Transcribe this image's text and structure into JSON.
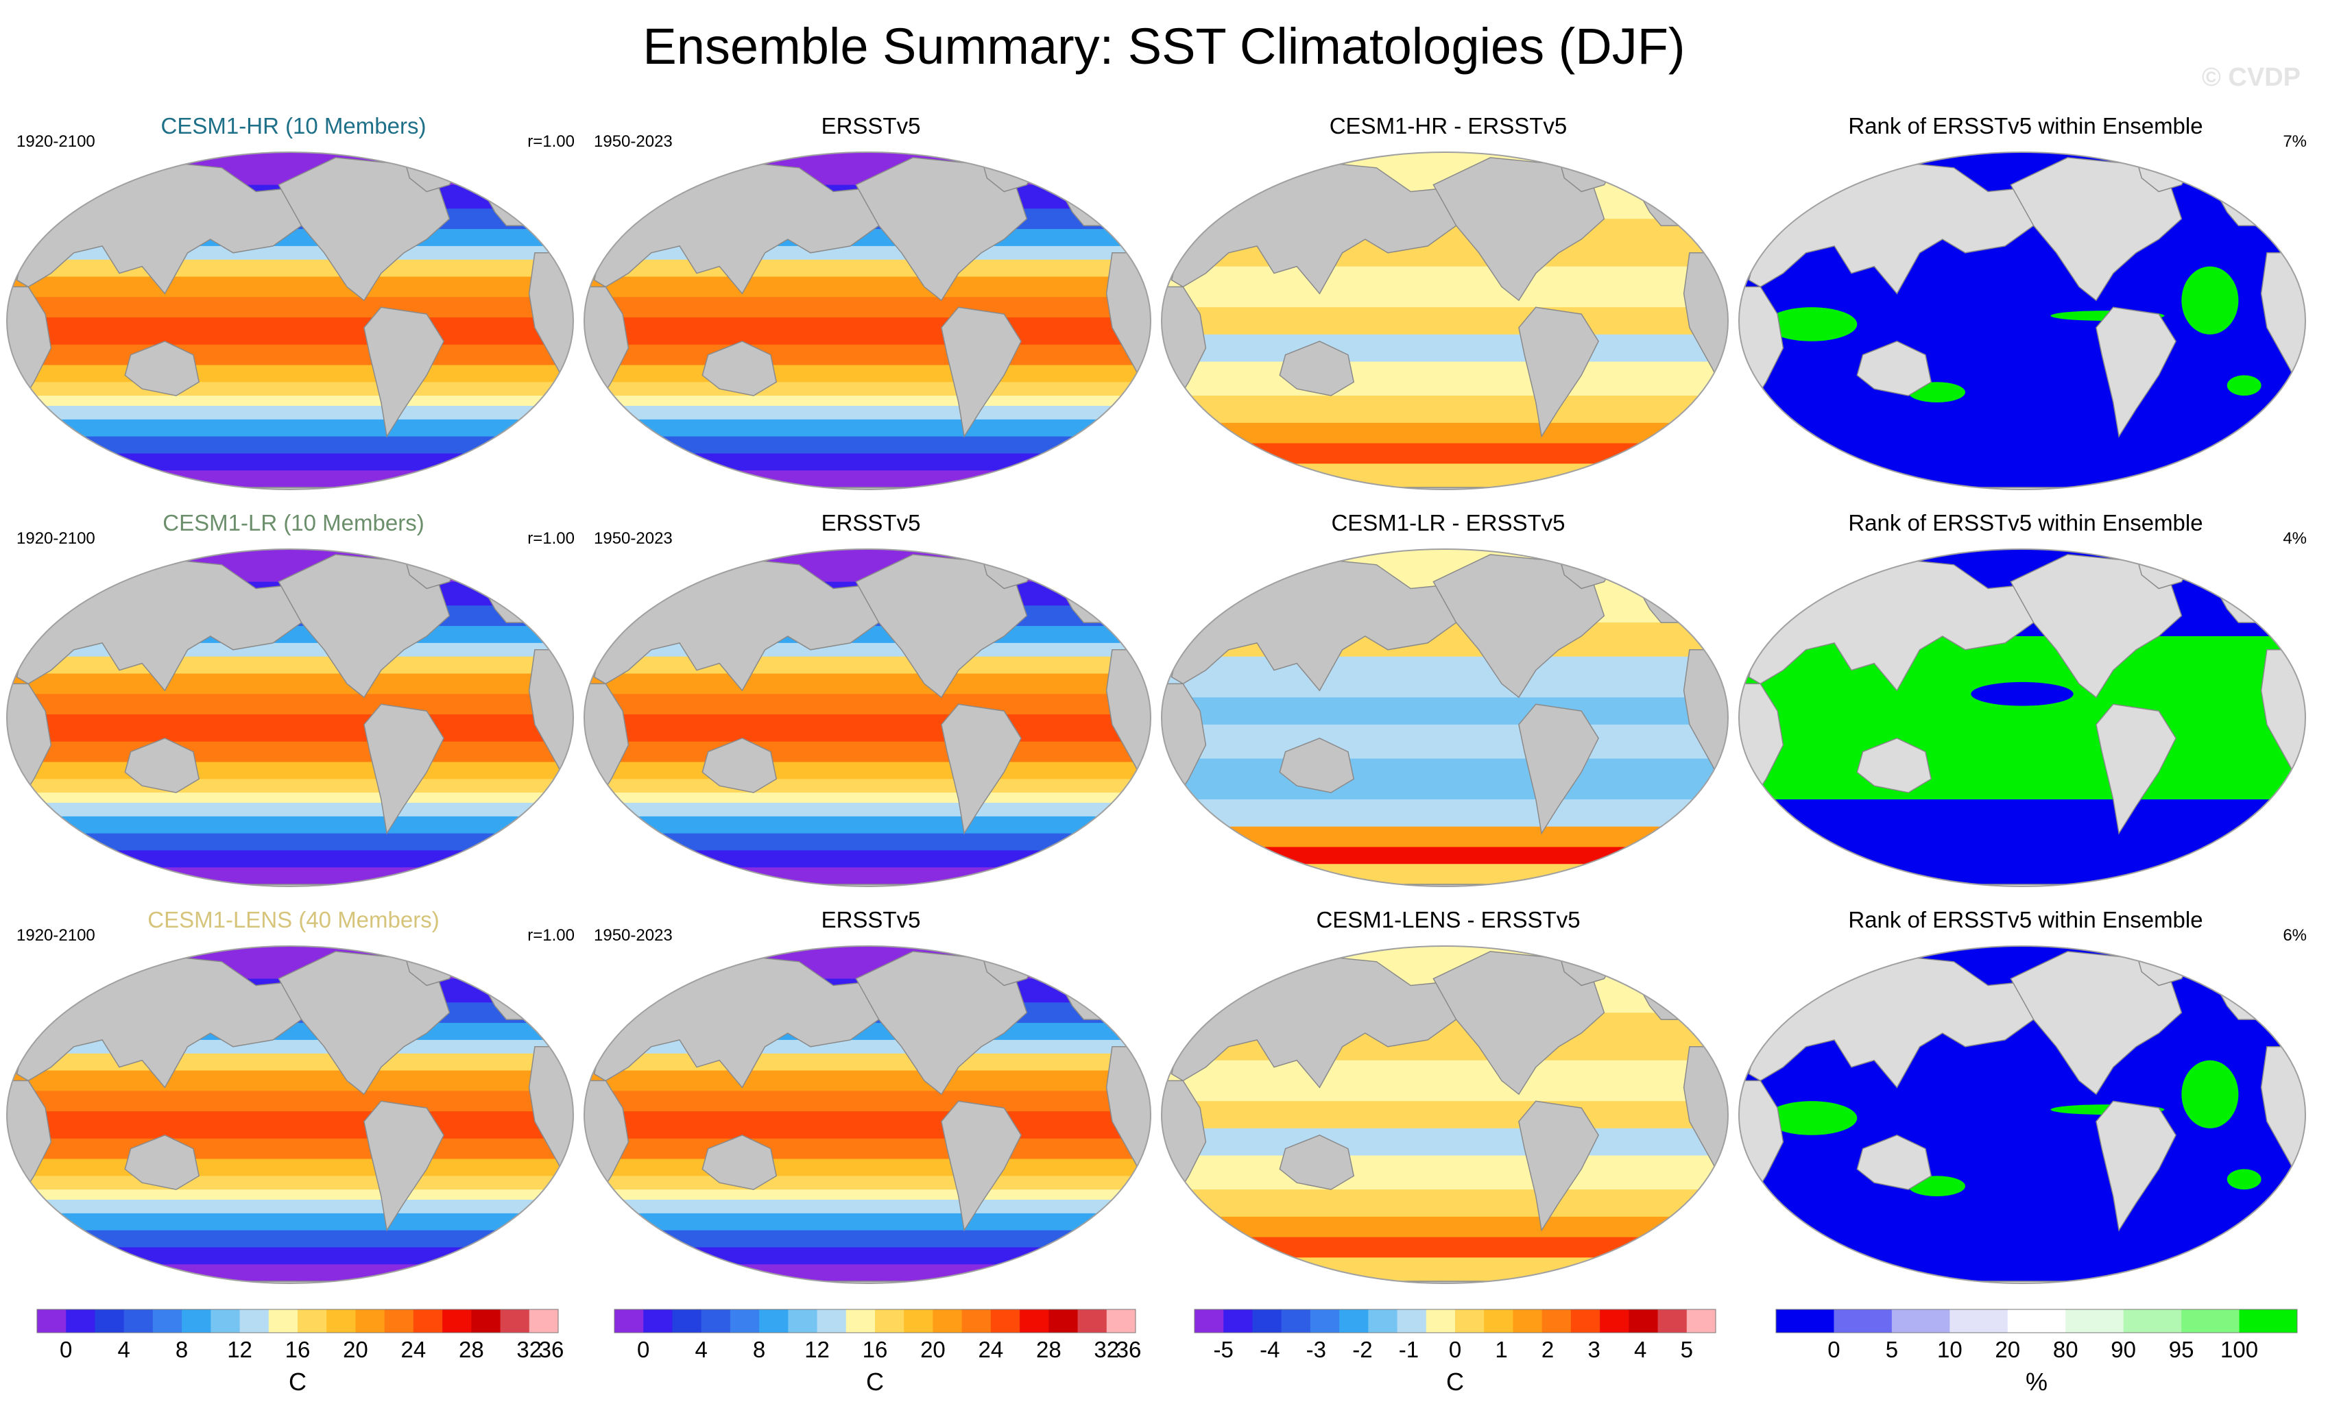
{
  "figure": {
    "title": "Ensemble Summary: SST Climatologies (DJF)",
    "copyright": "© CVDP"
  },
  "rows": [
    {
      "panels": [
        {
          "title": "CESM1-HR (10 Members)",
          "title_color": "#1d7088",
          "left": "1920-2100",
          "right": "r=1.00",
          "type": "sst"
        },
        {
          "title": "ERSSTv5",
          "title_color": "#000000",
          "left": "1950-2023",
          "right": "",
          "type": "sst"
        },
        {
          "title": "CESM1-HR - ERSSTv5",
          "title_color": "#000000",
          "left": "",
          "right": "",
          "type": "diff_warm"
        },
        {
          "title": "Rank of ERSSTv5 within Ensemble",
          "title_color": "#000000",
          "left": "",
          "right": "7%",
          "type": "rank_blue"
        }
      ]
    },
    {
      "panels": [
        {
          "title": "CESM1-LR (10 Members)",
          "title_color": "#6b8e6b",
          "left": "1920-2100",
          "right": "r=1.00",
          "type": "sst"
        },
        {
          "title": "ERSSTv5",
          "title_color": "#000000",
          "left": "1950-2023",
          "right": "",
          "type": "sst"
        },
        {
          "title": "CESM1-LR - ERSSTv5",
          "title_color": "#000000",
          "left": "",
          "right": "",
          "type": "diff_cool"
        },
        {
          "title": "Rank of ERSSTv5 within Ensemble",
          "title_color": "#000000",
          "left": "",
          "right": "4%",
          "type": "rank_green"
        }
      ]
    },
    {
      "panels": [
        {
          "title": "CESM1-LENS (40 Members)",
          "title_color": "#d6c47a",
          "left": "1920-2100",
          "right": "r=1.00",
          "type": "sst"
        },
        {
          "title": "ERSSTv5",
          "title_color": "#000000",
          "left": "1950-2023",
          "right": "",
          "type": "sst"
        },
        {
          "title": "CESM1-LENS - ERSSTv5",
          "title_color": "#000000",
          "left": "",
          "right": "",
          "type": "diff_warm"
        },
        {
          "title": "Rank of ERSSTv5 within Ensemble",
          "title_color": "#000000",
          "left": "",
          "right": "6%",
          "type": "rank_blue"
        }
      ]
    }
  ],
  "colorbars": [
    {
      "unit": "C",
      "colors": [
        "#8a2be2",
        "#3a1ef0",
        "#2340e0",
        "#2f5ee6",
        "#3a80ee",
        "#34a6f2",
        "#76c4f2",
        "#b6dcf4",
        "#fff6a8",
        "#ffd75a",
        "#ffbf2a",
        "#ff9e16",
        "#ff7a10",
        "#ff4a08",
        "#f20c00",
        "#cc0000",
        "#d8434c",
        "#ffb2b6"
      ],
      "ticks": [
        "0",
        "4",
        "8",
        "12",
        "16",
        "20",
        "24",
        "28",
        "32",
        "36"
      ]
    },
    {
      "unit": "C",
      "colors": [
        "#8a2be2",
        "#3a1ef0",
        "#2340e0",
        "#2f5ee6",
        "#3a80ee",
        "#34a6f2",
        "#76c4f2",
        "#b6dcf4",
        "#fff6a8",
        "#ffd75a",
        "#ffbf2a",
        "#ff9e16",
        "#ff7a10",
        "#ff4a08",
        "#f20c00",
        "#cc0000",
        "#d8434c",
        "#ffb2b6"
      ],
      "ticks": [
        "0",
        "4",
        "8",
        "12",
        "16",
        "20",
        "24",
        "28",
        "32",
        "36"
      ]
    },
    {
      "unit": "C",
      "colors": [
        "#8a2be2",
        "#3a1ef0",
        "#2340e0",
        "#2f5ee6",
        "#3a80ee",
        "#34a6f2",
        "#76c4f2",
        "#b6dcf4",
        "#fff6a8",
        "#ffd75a",
        "#ffbf2a",
        "#ff9e16",
        "#ff7a10",
        "#ff4a08",
        "#f20c00",
        "#cc0000",
        "#d8434c",
        "#ffb2b6"
      ],
      "ticks": [
        "-5",
        "-4",
        "-3",
        "-2",
        "-1",
        "0",
        "1",
        "2",
        "3",
        "4",
        "5"
      ]
    },
    {
      "unit": "%",
      "colors": [
        "#0000f0",
        "#6a6af2",
        "#b0b0f4",
        "#e2e2f8",
        "#ffffff",
        "#e2fae2",
        "#b2f8b2",
        "#80f880",
        "#00f000"
      ],
      "ticks": [
        "0",
        "5",
        "10",
        "20",
        "80",
        "90",
        "95",
        "100"
      ]
    }
  ],
  "palette": {
    "land": "#c4c4c4",
    "land_light": "#dcdcdc",
    "rank_blue": "#0000f0",
    "rank_green": "#00f000"
  }
}
